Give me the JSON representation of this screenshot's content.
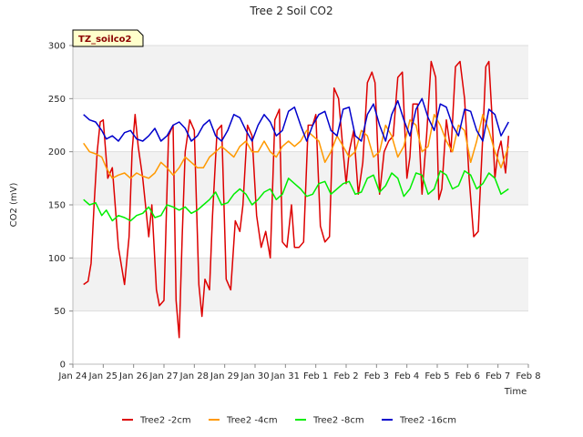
{
  "chart_data": {
    "type": "line",
    "title": "Tree 2 Soil CO2",
    "xlabel": "Time",
    "ylabel": "CO2 (mV)",
    "tag": "TZ_soilco2",
    "ylim": [
      0,
      300
    ],
    "yticks": [
      0,
      50,
      100,
      150,
      200,
      250,
      300
    ],
    "xlim": [
      0,
      15
    ],
    "xticks": [
      {
        "pos": 0,
        "label": "Jan 24"
      },
      {
        "pos": 1,
        "label": "Jan 25"
      },
      {
        "pos": 2,
        "label": "Jan 26"
      },
      {
        "pos": 3,
        "label": "Jan 27"
      },
      {
        "pos": 4,
        "label": "Jan 28"
      },
      {
        "pos": 5,
        "label": "Jan 29"
      },
      {
        "pos": 6,
        "label": "Jan 30"
      },
      {
        "pos": 7,
        "label": "Jan 31"
      },
      {
        "pos": 8,
        "label": "Feb 1"
      },
      {
        "pos": 9,
        "label": "Feb 2"
      },
      {
        "pos": 10,
        "label": "Feb 3"
      },
      {
        "pos": 11,
        "label": "Feb 4"
      },
      {
        "pos": 12,
        "label": "Feb 5"
      },
      {
        "pos": 13,
        "label": "Feb 6"
      },
      {
        "pos": 14,
        "label": "Feb 7"
      },
      {
        "pos": 15,
        "label": "Feb 8"
      }
    ],
    "series": [
      {
        "name": "Tree2 -2cm",
        "color": "#dd0000",
        "x": [
          0.35,
          0.5,
          0.6,
          0.7,
          0.8,
          0.9,
          1.0,
          1.15,
          1.3,
          1.5,
          1.7,
          1.85,
          1.95,
          2.05,
          2.15,
          2.3,
          2.5,
          2.6,
          2.75,
          2.85,
          3.0,
          3.15,
          3.3,
          3.4,
          3.5,
          3.6,
          3.7,
          3.85,
          4.0,
          4.15,
          4.25,
          4.35,
          4.5,
          4.6,
          4.75,
          4.9,
          5.05,
          5.2,
          5.35,
          5.5,
          5.6,
          5.75,
          5.9,
          6.05,
          6.2,
          6.35,
          6.5,
          6.65,
          6.8,
          6.9,
          7.05,
          7.2,
          7.3,
          7.45,
          7.6,
          7.75,
          7.9,
          8.0,
          8.15,
          8.3,
          8.45,
          8.6,
          8.75,
          8.9,
          9.0,
          9.1,
          9.25,
          9.4,
          9.55,
          9.7,
          9.85,
          9.95,
          10.1,
          10.25,
          10.4,
          10.55,
          10.7,
          10.85,
          11.0,
          11.1,
          11.2,
          11.35,
          11.5,
          11.65,
          11.8,
          11.95,
          12.05,
          12.15,
          12.3,
          12.45,
          12.6,
          12.75,
          12.9,
          13.05,
          13.2,
          13.35,
          13.5,
          13.6,
          13.7,
          13.8,
          13.9,
          14.0,
          14.1,
          14.25,
          14.35
        ],
        "values": [
          75,
          78,
          95,
          150,
          200,
          228,
          230,
          175,
          185,
          110,
          75,
          120,
          200,
          235,
          205,
          175,
          120,
          150,
          70,
          55,
          60,
          215,
          225,
          60,
          25,
          120,
          200,
          230,
          220,
          75,
          45,
          80,
          70,
          140,
          220,
          225,
          80,
          70,
          135,
          125,
          150,
          225,
          215,
          140,
          110,
          125,
          100,
          230,
          240,
          115,
          110,
          150,
          110,
          110,
          115,
          225,
          225,
          235,
          130,
          115,
          120,
          260,
          250,
          200,
          170,
          200,
          220,
          160,
          190,
          265,
          275,
          265,
          160,
          200,
          210,
          215,
          270,
          275,
          175,
          195,
          245,
          245,
          160,
          215,
          285,
          270,
          155,
          165,
          230,
          200,
          280,
          285,
          250,
          175,
          120,
          125,
          215,
          280,
          285,
          235,
          175,
          200,
          210,
          180,
          215
        ]
      },
      {
        "name": "Tree2 -4cm",
        "color": "#ff9900",
        "x": [
          0.35,
          0.55,
          0.75,
          0.95,
          1.1,
          1.3,
          1.5,
          1.7,
          1.9,
          2.1,
          2.3,
          2.5,
          2.7,
          2.9,
          3.1,
          3.3,
          3.5,
          3.7,
          3.9,
          4.1,
          4.3,
          4.5,
          4.7,
          4.9,
          5.1,
          5.3,
          5.5,
          5.7,
          5.9,
          6.1,
          6.3,
          6.5,
          6.7,
          6.9,
          7.1,
          7.3,
          7.5,
          7.7,
          7.9,
          8.1,
          8.3,
          8.5,
          8.7,
          8.9,
          9.1,
          9.3,
          9.5,
          9.7,
          9.9,
          10.1,
          10.3,
          10.5,
          10.7,
          10.9,
          11.1,
          11.3,
          11.5,
          11.7,
          11.9,
          12.1,
          12.3,
          12.5,
          12.7,
          12.9,
          13.1,
          13.3,
          13.5,
          13.7,
          13.9,
          14.1,
          14.35
        ],
        "values": [
          208,
          200,
          198,
          195,
          185,
          175,
          178,
          180,
          175,
          180,
          177,
          175,
          180,
          190,
          185,
          178,
          185,
          195,
          190,
          185,
          185,
          195,
          200,
          205,
          200,
          195,
          205,
          210,
          200,
          200,
          210,
          200,
          195,
          205,
          210,
          205,
          210,
          220,
          215,
          210,
          190,
          200,
          215,
          205,
          195,
          200,
          220,
          215,
          195,
          200,
          225,
          215,
          195,
          205,
          230,
          225,
          200,
          205,
          235,
          225,
          210,
          200,
          225,
          220,
          190,
          210,
          235,
          220,
          200,
          185,
          205
        ]
      },
      {
        "name": "Tree2 -8cm",
        "color": "#00ee00",
        "x": [
          0.35,
          0.55,
          0.75,
          0.95,
          1.1,
          1.3,
          1.5,
          1.7,
          1.9,
          2.1,
          2.3,
          2.5,
          2.7,
          2.9,
          3.1,
          3.3,
          3.5,
          3.7,
          3.9,
          4.1,
          4.3,
          4.5,
          4.7,
          4.9,
          5.1,
          5.3,
          5.5,
          5.7,
          5.9,
          6.1,
          6.3,
          6.5,
          6.7,
          6.9,
          7.1,
          7.3,
          7.5,
          7.7,
          7.9,
          8.1,
          8.3,
          8.5,
          8.7,
          8.9,
          9.1,
          9.3,
          9.5,
          9.7,
          9.9,
          10.1,
          10.3,
          10.5,
          10.7,
          10.9,
          11.1,
          11.3,
          11.5,
          11.7,
          11.9,
          12.1,
          12.3,
          12.5,
          12.7,
          12.9,
          13.1,
          13.3,
          13.5,
          13.7,
          13.9,
          14.1,
          14.35
        ],
        "values": [
          155,
          150,
          152,
          140,
          145,
          135,
          140,
          138,
          135,
          140,
          142,
          148,
          138,
          140,
          150,
          148,
          145,
          148,
          142,
          145,
          150,
          155,
          162,
          150,
          152,
          160,
          165,
          160,
          150,
          155,
          162,
          165,
          155,
          160,
          175,
          170,
          165,
          158,
          160,
          170,
          172,
          160,
          165,
          170,
          172,
          160,
          162,
          175,
          178,
          162,
          168,
          180,
          175,
          158,
          165,
          180,
          178,
          160,
          165,
          182,
          178,
          165,
          168,
          182,
          178,
          165,
          170,
          180,
          175,
          160,
          165
        ]
      },
      {
        "name": "Tree2 -16cm",
        "color": "#0000cc",
        "x": [
          0.35,
          0.55,
          0.75,
          0.95,
          1.1,
          1.3,
          1.5,
          1.7,
          1.9,
          2.1,
          2.3,
          2.5,
          2.7,
          2.9,
          3.1,
          3.3,
          3.5,
          3.7,
          3.9,
          4.1,
          4.3,
          4.5,
          4.7,
          4.9,
          5.1,
          5.3,
          5.5,
          5.7,
          5.9,
          6.1,
          6.3,
          6.5,
          6.7,
          6.9,
          7.1,
          7.3,
          7.5,
          7.7,
          7.9,
          8.1,
          8.3,
          8.5,
          8.7,
          8.9,
          9.1,
          9.3,
          9.5,
          9.7,
          9.9,
          10.1,
          10.3,
          10.5,
          10.7,
          10.9,
          11.1,
          11.3,
          11.5,
          11.7,
          11.9,
          12.1,
          12.3,
          12.5,
          12.7,
          12.9,
          13.1,
          13.3,
          13.5,
          13.7,
          13.9,
          14.1,
          14.35
        ],
        "values": [
          235,
          230,
          228,
          220,
          212,
          215,
          210,
          218,
          220,
          212,
          210,
          215,
          222,
          210,
          215,
          225,
          228,
          222,
          210,
          215,
          225,
          230,
          215,
          210,
          220,
          235,
          232,
          220,
          210,
          225,
          235,
          228,
          215,
          220,
          238,
          242,
          225,
          210,
          225,
          235,
          238,
          220,
          215,
          240,
          242,
          215,
          210,
          235,
          245,
          225,
          210,
          235,
          248,
          230,
          215,
          240,
          250,
          232,
          220,
          245,
          242,
          225,
          215,
          240,
          238,
          220,
          210,
          240,
          235,
          215,
          228
        ]
      }
    ]
  }
}
